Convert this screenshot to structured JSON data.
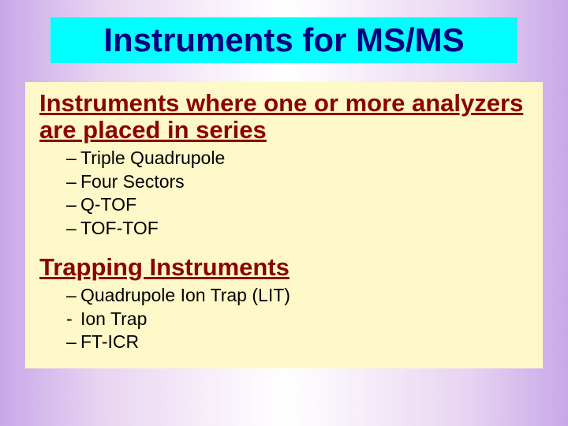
{
  "colors": {
    "title_bg": "#00ffff",
    "title_text": "#000080",
    "content_bg": "#fff8c8",
    "section_head": "#8b0000",
    "item_text": "#000000"
  },
  "title": "Instruments for MS/MS",
  "section1": {
    "heading": "Instruments where one or more analyzers are placed in series",
    "items": [
      "Triple Quadrupole",
      "Four Sectors",
      "Q-TOF",
      "TOF-TOF"
    ]
  },
  "section2": {
    "heading": "Trapping Instruments",
    "items": [
      "Quadrupole Ion Trap (LIT)",
      "Ion Trap",
      "FT-ICR"
    ]
  }
}
